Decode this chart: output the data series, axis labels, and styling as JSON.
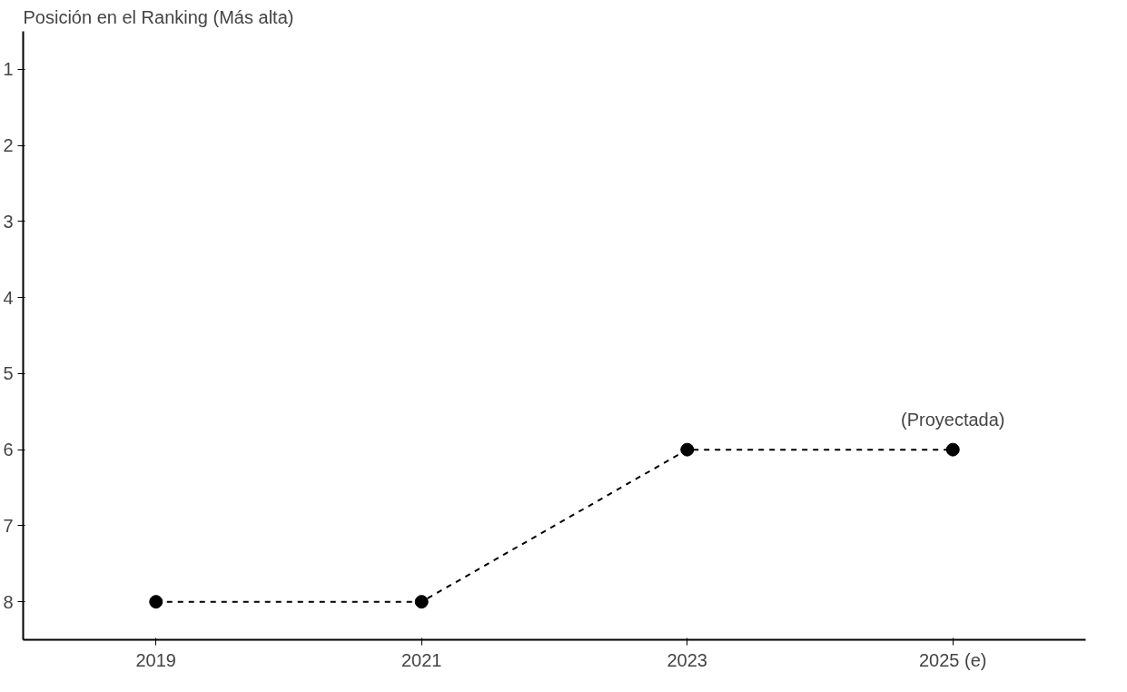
{
  "chart_data": {
    "type": "line",
    "title": "Posición en el Ranking (Más alta)",
    "categories": [
      "2019",
      "2021",
      "2023",
      "2025 (e)"
    ],
    "series": [
      {
        "color": "#000000",
        "values": [
          8,
          8,
          6,
          6
        ]
      }
    ],
    "ylim": [
      8.5,
      0.5
    ],
    "yticks": [
      1,
      2,
      3,
      4,
      5,
      6,
      7,
      8
    ],
    "annotations": [
      {
        "text": "(Proyectada)",
        "x": "2025 (e)",
        "y": 6
      }
    ],
    "marker": "circle",
    "line_style": "dashed",
    "grid": false
  }
}
